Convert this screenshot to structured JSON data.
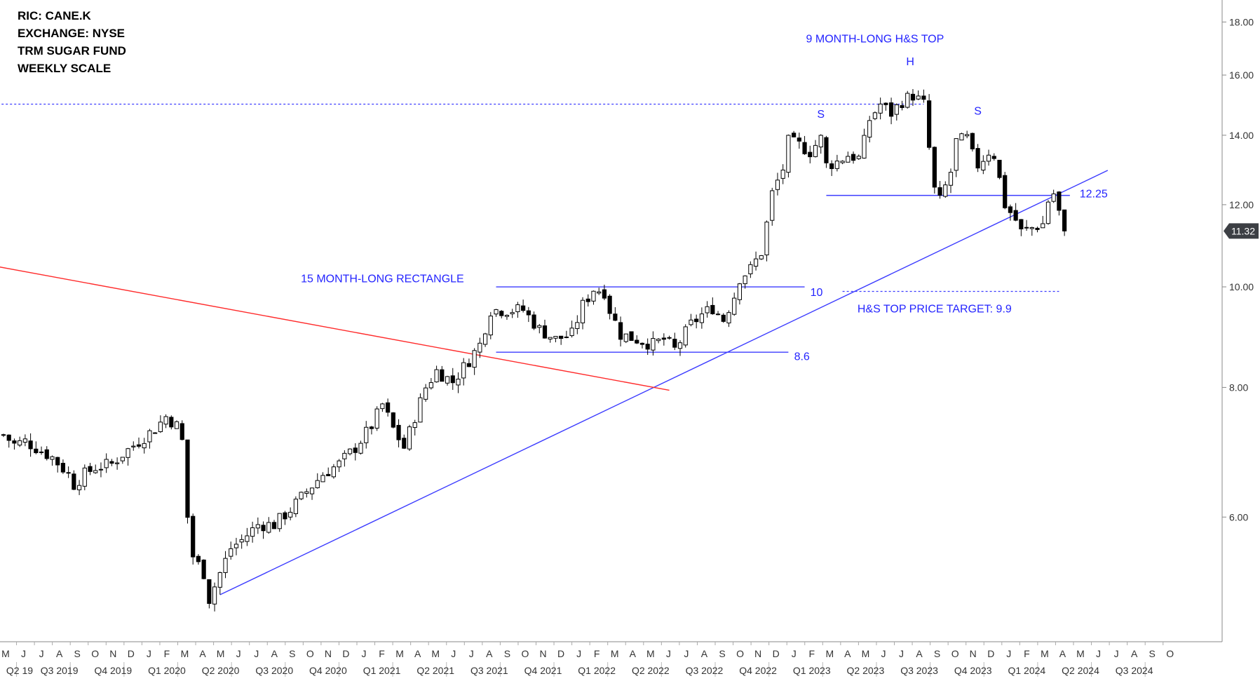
{
  "info_lines": [
    "RIC: CANE.K",
    "EXCHANGE: NYSE",
    "TRM SUGAR FUND",
    "WEEKLY SCALE"
  ],
  "chart_data": {
    "type": "candlestick",
    "scale": "log",
    "ylim": [
      4.55,
      18.9
    ],
    "y_ticks": [
      "6.00",
      "8.00",
      "10.00",
      "12.00",
      "14.00",
      "16.00",
      "18.00"
    ],
    "last_price": "11.32",
    "month_labels": [
      "M",
      "J",
      "J",
      "A",
      "S",
      "O",
      "N",
      "D",
      "J",
      "F",
      "M",
      "A",
      "M",
      "J",
      "J",
      "A",
      "S",
      "O",
      "N",
      "D",
      "J",
      "F",
      "M",
      "A",
      "M",
      "J",
      "J",
      "A",
      "S",
      "O",
      "N",
      "D",
      "J",
      "F",
      "M",
      "A",
      "M",
      "J",
      "J",
      "A",
      "S",
      "O",
      "N",
      "D",
      "J",
      "F",
      "M",
      "A",
      "M",
      "J",
      "J",
      "A",
      "S",
      "O",
      "N",
      "D",
      "J",
      "F",
      "M",
      "A",
      "M",
      "J",
      "J",
      "A",
      "S",
      "O"
    ],
    "quarter_labels": [
      "Q2 19",
      "Q3 2019",
      "Q4 2019",
      "Q1 2020",
      "Q2 2020",
      "Q3 2020",
      "Q4 2020",
      "Q1 2021",
      "Q2 2021",
      "Q3 2021",
      "Q4 2021",
      "Q1 2022",
      "Q2 2022",
      "Q3 2022",
      "Q4 2022",
      "Q1 2023",
      "Q2 2023",
      "Q3 2023",
      "Q4 2023",
      "Q1 2024",
      "Q2 2024",
      "Q3 2024"
    ],
    "price_path": [
      [
        0,
        7.2
      ],
      [
        2,
        7.05
      ],
      [
        4,
        7.1
      ],
      [
        6,
        7.0
      ],
      [
        9,
        6.85
      ],
      [
        12,
        6.6
      ],
      [
        13,
        6.45
      ],
      [
        15,
        6.6
      ],
      [
        17,
        6.7
      ],
      [
        20,
        6.75
      ],
      [
        22,
        6.9
      ],
      [
        25,
        7.1
      ],
      [
        28,
        7.3
      ],
      [
        30,
        7.5
      ],
      [
        32,
        7.35
      ],
      [
        33,
        7.1
      ],
      [
        34,
        6.0
      ],
      [
        35,
        5.5
      ],
      [
        37,
        5.3
      ],
      [
        38,
        5.0
      ],
      [
        40,
        5.3
      ],
      [
        42,
        5.6
      ],
      [
        44,
        5.7
      ],
      [
        47,
        5.9
      ],
      [
        50,
        5.9
      ],
      [
        53,
        6.1
      ],
      [
        56,
        6.35
      ],
      [
        59,
        6.6
      ],
      [
        62,
        6.75
      ],
      [
        65,
        7.0
      ],
      [
        68,
        7.35
      ],
      [
        70,
        7.7
      ],
      [
        72,
        7.3
      ],
      [
        74,
        7.0
      ],
      [
        76,
        7.5
      ],
      [
        78,
        8.0
      ],
      [
        80,
        8.3
      ],
      [
        83,
        8.1
      ],
      [
        86,
        8.5
      ],
      [
        88,
        8.8
      ],
      [
        90,
        9.5
      ],
      [
        93,
        9.5
      ],
      [
        96,
        9.5
      ],
      [
        99,
        9.1
      ],
      [
        102,
        8.9
      ],
      [
        105,
        9.0
      ],
      [
        107,
        9.6
      ],
      [
        109,
        9.95
      ],
      [
        111,
        9.9
      ],
      [
        112,
        9.5
      ],
      [
        114,
        9.0
      ],
      [
        117,
        8.9
      ],
      [
        120,
        8.8
      ],
      [
        122,
        8.9
      ],
      [
        124,
        8.7
      ],
      [
        127,
        9.2
      ],
      [
        129,
        9.4
      ],
      [
        131,
        9.55
      ],
      [
        133,
        9.3
      ],
      [
        135,
        9.8
      ],
      [
        136,
        10.2
      ],
      [
        138,
        10.4
      ],
      [
        140,
        10.8
      ],
      [
        141,
        11.5
      ],
      [
        142,
        12.3
      ],
      [
        144,
        13.0
      ],
      [
        145,
        13.8
      ],
      [
        147,
        13.7
      ],
      [
        149,
        13.5
      ],
      [
        151,
        13.9
      ],
      [
        152,
        13.1
      ],
      [
        154,
        13.2
      ],
      [
        156,
        13.4
      ],
      [
        158,
        13.3
      ],
      [
        159,
        13.8
      ],
      [
        160,
        14.5
      ],
      [
        162,
        15.0
      ],
      [
        164,
        14.7
      ],
      [
        166,
        15.1
      ],
      [
        168,
        15.3
      ],
      [
        170,
        15.0
      ],
      [
        171,
        13.6
      ],
      [
        172,
        12.4
      ],
      [
        173,
        12.1
      ],
      [
        175,
        12.9
      ],
      [
        176,
        13.8
      ],
      [
        178,
        13.9
      ],
      [
        179,
        13.4
      ],
      [
        180,
        13.1
      ],
      [
        182,
        13.5
      ],
      [
        183,
        13.4
      ],
      [
        184,
        12.7
      ],
      [
        185,
        12.0
      ],
      [
        186,
        11.8
      ],
      [
        187,
        11.6
      ],
      [
        188,
        11.3
      ],
      [
        190,
        11.4
      ],
      [
        192,
        11.5
      ],
      [
        193,
        12.1
      ],
      [
        194,
        12.3
      ],
      [
        195,
        11.8
      ],
      [
        196,
        11.32
      ]
    ],
    "trendlines": [
      {
        "name": "rising-trendline",
        "color": "#3c3cff",
        "points": [
          [
            40,
            5.05
          ],
          [
            204,
            12.95
          ]
        ]
      },
      {
        "name": "falling-trendline",
        "color": "#ff2b2b",
        "points": [
          [
            -40,
            11.4
          ],
          [
            123,
            7.95
          ]
        ]
      },
      {
        "name": "rectangle-upper",
        "color": "#3c3cff",
        "points": [
          [
            91,
            10.0
          ],
          [
            148,
            10.0
          ]
        ]
      },
      {
        "name": "rectangle-lower",
        "color": "#3c3cff",
        "points": [
          [
            91,
            8.65
          ],
          [
            145,
            8.65
          ]
        ]
      },
      {
        "name": "neckline",
        "color": "#3c3cff",
        "points": [
          [
            152,
            12.25
          ],
          [
            197,
            12.25
          ]
        ]
      }
    ],
    "dotted_levels": [
      {
        "name": "resistance-level",
        "value": 15.0,
        "from": -40,
        "to": 170
      },
      {
        "name": "target-level",
        "value": 9.9,
        "from": 155,
        "to": 195
      }
    ],
    "annotations": [
      {
        "name": "title-annotation",
        "text": "9 MONTH-LONG H&S TOP",
        "x": 161,
        "y": 17.2,
        "anchor": "middle"
      },
      {
        "name": "head-label",
        "text": "H",
        "x": 167.5,
        "y": 16.35,
        "anchor": "middle"
      },
      {
        "name": "left-shoulder-label",
        "text": "S",
        "x": 151,
        "y": 14.55,
        "anchor": "middle"
      },
      {
        "name": "right-shoulder-label",
        "text": "S",
        "x": 180,
        "y": 14.65,
        "anchor": "middle"
      },
      {
        "name": "neckline-value",
        "text": "12.25",
        "x": 198.8,
        "y": 12.2,
        "anchor": "start"
      },
      {
        "name": "rectangle-label",
        "text": "15 MONTH-LONG RECTANGLE",
        "x": 70,
        "y": 10.1,
        "anchor": "middle"
      },
      {
        "name": "rect-upper-value",
        "text": "10",
        "x": 150.2,
        "y": 9.8,
        "anchor": "middle"
      },
      {
        "name": "rect-lower-value",
        "text": "8.6",
        "x": 147.5,
        "y": 8.5,
        "anchor": "middle"
      },
      {
        "name": "target-annotation",
        "text": "H&S TOP PRICE TARGET: 9.9",
        "x": 172,
        "y": 9.45,
        "anchor": "middle"
      }
    ]
  }
}
